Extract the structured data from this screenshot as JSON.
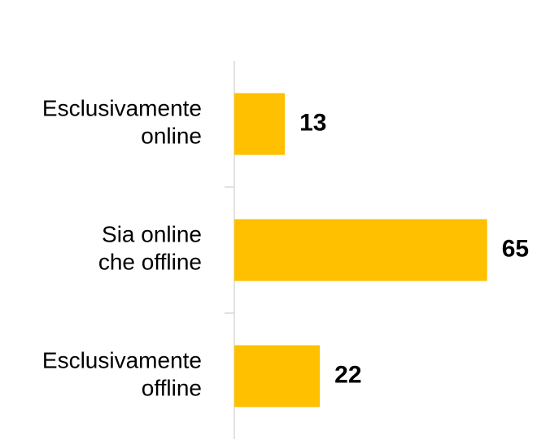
{
  "chart_data": {
    "type": "barh",
    "categories": [
      [
        "Esclusivamente",
        "online"
      ],
      [
        "Sia online",
        "che offline"
      ],
      [
        "Esclusivamente",
        "offline"
      ]
    ],
    "values": [
      13,
      65,
      22
    ],
    "color": "#ffc000"
  }
}
